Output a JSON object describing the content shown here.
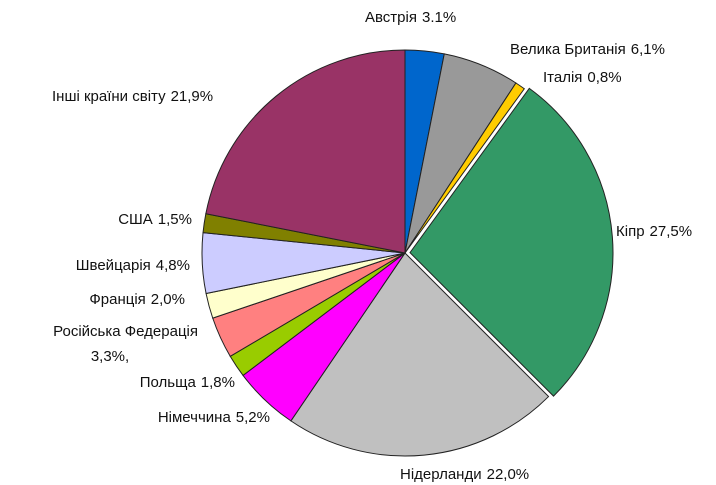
{
  "chart_data": {
    "type": "pie",
    "categories": [
      "Австрія",
      "Велика Британія",
      "Італія",
      "Кіпр",
      "Нідерланди",
      "Німеччина",
      "Польща",
      "Російська Федерація",
      "Франція",
      "Швейцарія",
      "США",
      "Інші країни світу"
    ],
    "values": [
      3.1,
      6.1,
      0.8,
      27.5,
      22.0,
      5.2,
      1.8,
      3.3,
      2.0,
      4.8,
      1.5,
      21.9
    ],
    "value_labels": [
      "3.1%",
      "6,1%",
      "0,8%",
      "27,5%",
      "22,0%",
      "5,2%",
      "1,8%",
      "3,3%,",
      "2,0%",
      "4,8%",
      "1,5%",
      "21,9%"
    ],
    "colors": [
      "#0066cc",
      "#999999",
      "#ffcc00",
      "#339966",
      "#c0c0c0",
      "#ff00ff",
      "#99cc00",
      "#ff8080",
      "#ffffcc",
      "#ccccff",
      "#808000",
      "#993366"
    ]
  }
}
